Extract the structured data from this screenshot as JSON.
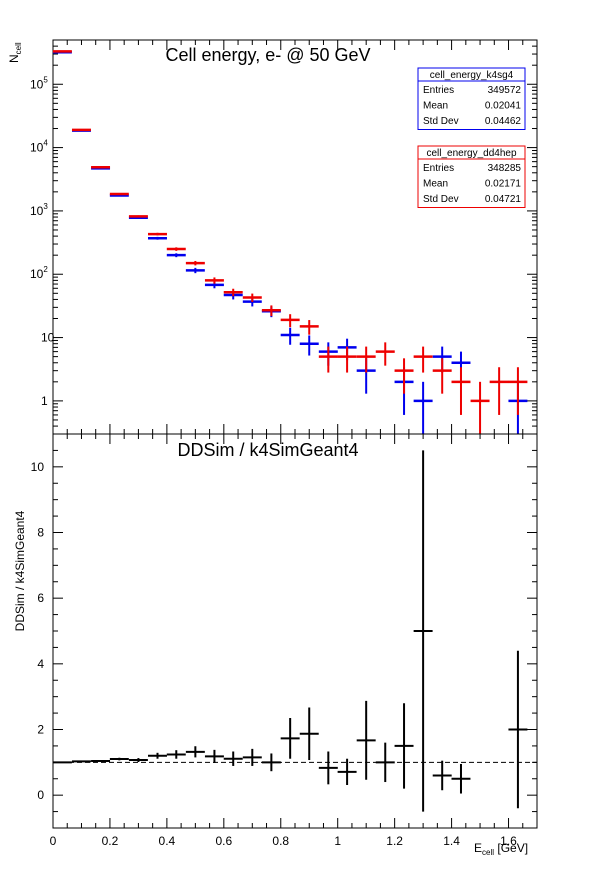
{
  "chart_data": [
    {
      "type": "scatter",
      "title": "Cell energy,  e- @ 50 GeV",
      "ylabel_main": "N",
      "ylabel_sub": "cell",
      "yscale": "log",
      "xlim": [
        0,
        1.7
      ],
      "ylim": [
        0.3,
        500000
      ],
      "ytick_labels": [
        {
          "value": 1,
          "base": "1",
          "exp": ""
        },
        {
          "value": 10,
          "base": "10",
          "exp": ""
        },
        {
          "value": 100,
          "base": "10",
          "exp": "2"
        },
        {
          "value": 1000,
          "base": "10",
          "exp": "3"
        },
        {
          "value": 10000,
          "base": "10",
          "exp": "4"
        },
        {
          "value": 100000,
          "base": "10",
          "exp": "5"
        }
      ],
      "bin_half_width": 0.0333,
      "series": [
        {
          "name": "cell_energy_k4sg4",
          "color": "#0000ee",
          "points": [
            {
              "x": 0.033,
              "y": 320000,
              "e": 570
            },
            {
              "x": 0.1,
              "y": 18500,
              "e": 136
            },
            {
              "x": 0.167,
              "y": 4700,
              "e": 69
            },
            {
              "x": 0.233,
              "y": 1750,
              "e": 42
            },
            {
              "x": 0.3,
              "y": 780,
              "e": 28
            },
            {
              "x": 0.367,
              "y": 370,
              "e": 19
            },
            {
              "x": 0.433,
              "y": 200,
              "e": 14
            },
            {
              "x": 0.5,
              "y": 115,
              "e": 11
            },
            {
              "x": 0.567,
              "y": 68,
              "e": 8
            },
            {
              "x": 0.633,
              "y": 47,
              "e": 7
            },
            {
              "x": 0.7,
              "y": 37,
              "e": 6
            },
            {
              "x": 0.767,
              "y": 26,
              "e": 5
            },
            {
              "x": 0.833,
              "y": 11,
              "e": 3.3
            },
            {
              "x": 0.9,
              "y": 8,
              "e": 2.8
            },
            {
              "x": 0.967,
              "y": 6,
              "e": 2.4
            },
            {
              "x": 1.033,
              "y": 7,
              "e": 2.6
            },
            {
              "x": 1.1,
              "y": 3,
              "e": 1.7
            },
            {
              "x": 1.233,
              "y": 2,
              "e": 1.4
            },
            {
              "x": 1.3,
              "y": 1,
              "e": 1
            },
            {
              "x": 1.367,
              "y": 5,
              "e": 2.2
            },
            {
              "x": 1.433,
              "y": 4,
              "e": 2
            },
            {
              "x": 1.633,
              "y": 1,
              "e": 1
            }
          ]
        },
        {
          "name": "cell_energy_dd4hep",
          "color": "#ee0000",
          "points": [
            {
              "x": 0.033,
              "y": 330000,
              "e": 575
            },
            {
              "x": 0.1,
              "y": 19000,
              "e": 138
            },
            {
              "x": 0.167,
              "y": 4900,
              "e": 70
            },
            {
              "x": 0.233,
              "y": 1850,
              "e": 43
            },
            {
              "x": 0.3,
              "y": 820,
              "e": 29
            },
            {
              "x": 0.367,
              "y": 430,
              "e": 21
            },
            {
              "x": 0.433,
              "y": 250,
              "e": 16
            },
            {
              "x": 0.5,
              "y": 150,
              "e": 12
            },
            {
              "x": 0.567,
              "y": 80,
              "e": 9
            },
            {
              "x": 0.633,
              "y": 52,
              "e": 7
            },
            {
              "x": 0.7,
              "y": 43,
              "e": 6.5
            },
            {
              "x": 0.767,
              "y": 27,
              "e": 5.2
            },
            {
              "x": 0.833,
              "y": 19,
              "e": 4.4
            },
            {
              "x": 0.9,
              "y": 15,
              "e": 3.9
            },
            {
              "x": 0.967,
              "y": 5,
              "e": 2.2
            },
            {
              "x": 1.033,
              "y": 5,
              "e": 2.2
            },
            {
              "x": 1.1,
              "y": 5,
              "e": 2.2
            },
            {
              "x": 1.167,
              "y": 6,
              "e": 2.4
            },
            {
              "x": 1.233,
              "y": 3,
              "e": 1.7
            },
            {
              "x": 1.3,
              "y": 5,
              "e": 2.2
            },
            {
              "x": 1.367,
              "y": 3,
              "e": 1.7
            },
            {
              "x": 1.433,
              "y": 2,
              "e": 1.4
            },
            {
              "x": 1.5,
              "y": 1,
              "e": 1
            },
            {
              "x": 1.567,
              "y": 2,
              "e": 1.4
            },
            {
              "x": 1.633,
              "y": 2,
              "e": 1.4
            }
          ]
        }
      ],
      "stat_boxes": [
        {
          "title": "cell_energy_k4sg4",
          "color": "#0000ee",
          "rows": [
            {
              "label": "Entries",
              "value": "349572"
            },
            {
              "label": "Mean",
              "value": "0.02041"
            },
            {
              "label": "Std Dev",
              "value": "0.04462"
            }
          ]
        },
        {
          "title": "cell_energy_dd4hep",
          "color": "#ee0000",
          "rows": [
            {
              "label": "Entries",
              "value": "348285"
            },
            {
              "label": "Mean",
              "value": "0.02171"
            },
            {
              "label": "Std Dev",
              "value": "0.04721"
            }
          ]
        }
      ]
    },
    {
      "type": "scatter",
      "title": "DDSim / k4SimGeant4",
      "ylabel": "DDSim / k4SimGeant4",
      "xlabel_main": "E",
      "xlabel_sub": "cell",
      "xlabel_unit": " [GeV]",
      "xlim": [
        0,
        1.7
      ],
      "ylim": [
        -1,
        11
      ],
      "yticks": [
        0,
        2,
        4,
        6,
        8,
        10
      ],
      "xticks": [
        0,
        0.2,
        0.4,
        0.6,
        0.8,
        1,
        1.2,
        1.4,
        1.6
      ],
      "reference_line": 1,
      "bin_half_width": 0.0333,
      "color": "#000000",
      "points": [
        {
          "x": 0.033,
          "y": 1.0,
          "e": 0.01
        },
        {
          "x": 0.1,
          "y": 1.03,
          "e": 0.02
        },
        {
          "x": 0.167,
          "y": 1.04,
          "e": 0.03
        },
        {
          "x": 0.233,
          "y": 1.1,
          "e": 0.04
        },
        {
          "x": 0.3,
          "y": 1.07,
          "e": 0.06
        },
        {
          "x": 0.367,
          "y": 1.2,
          "e": 0.09
        },
        {
          "x": 0.433,
          "y": 1.24,
          "e": 0.13
        },
        {
          "x": 0.5,
          "y": 1.32,
          "e": 0.17
        },
        {
          "x": 0.567,
          "y": 1.18,
          "e": 0.2
        },
        {
          "x": 0.633,
          "y": 1.11,
          "e": 0.22
        },
        {
          "x": 0.7,
          "y": 1.15,
          "e": 0.26
        },
        {
          "x": 0.767,
          "y": 1.0,
          "e": 0.27
        },
        {
          "x": 0.833,
          "y": 1.73,
          "e": 0.62
        },
        {
          "x": 0.9,
          "y": 1.87,
          "e": 0.8
        },
        {
          "x": 0.967,
          "y": 0.83,
          "e": 0.5
        },
        {
          "x": 1.033,
          "y": 0.71,
          "e": 0.4
        },
        {
          "x": 1.1,
          "y": 1.67,
          "e": 1.2
        },
        {
          "x": 1.167,
          "y": 1.0,
          "e": 0.6
        },
        {
          "x": 1.233,
          "y": 1.5,
          "e": 1.3
        },
        {
          "x": 1.3,
          "y": 5.0,
          "e": 5.5
        },
        {
          "x": 1.367,
          "y": 0.6,
          "e": 0.45
        },
        {
          "x": 1.433,
          "y": 0.5,
          "e": 0.45
        },
        {
          "x": 1.633,
          "y": 2.0,
          "e": 2.4
        }
      ]
    }
  ]
}
